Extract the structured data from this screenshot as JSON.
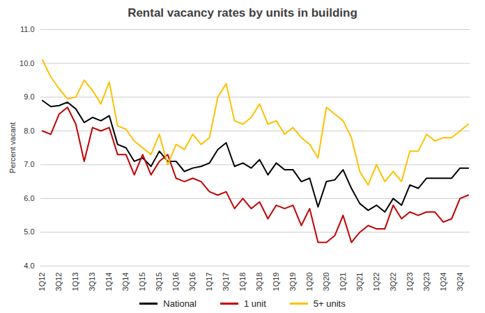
{
  "chart_data": {
    "type": "line",
    "title": "Rental vacancy rates by units in building",
    "y_label": "Percent vacant",
    "categories": [
      "1Q12",
      null,
      "3Q12",
      null,
      "1Q13",
      null,
      "3Q13",
      null,
      "1Q14",
      null,
      "3Q14",
      null,
      "1Q15",
      null,
      "3Q15",
      null,
      "1Q16",
      null,
      "3Q16",
      null,
      "1Q17",
      null,
      "3Q17",
      null,
      "1Q18",
      null,
      "3Q18",
      null,
      "1Q19",
      null,
      "3Q19",
      null,
      "1Q20",
      null,
      "3Q20",
      null,
      "1Q21",
      null,
      "3Q21",
      null,
      "1Q22",
      null,
      "3Q22",
      null,
      "1Q23",
      null,
      "3Q23",
      null,
      "1Q24",
      null,
      "3Q24",
      null
    ],
    "series": [
      {
        "name": "National",
        "color": "#000000",
        "values": [
          8.9,
          8.72,
          8.75,
          8.85,
          8.65,
          8.25,
          8.4,
          8.3,
          8.45,
          7.6,
          7.5,
          7.1,
          7.2,
          6.95,
          7.4,
          7.1,
          7.1,
          6.8,
          6.9,
          6.95,
          7.05,
          7.45,
          7.65,
          6.95,
          7.05,
          6.9,
          7.15,
          6.7,
          7.05,
          6.85,
          6.85,
          6.5,
          6.6,
          5.75,
          6.5,
          6.55,
          6.85,
          6.3,
          5.85,
          5.65,
          5.8,
          5.6,
          6.0,
          5.8,
          6.4,
          6.3,
          6.6,
          6.6,
          6.6,
          6.6,
          6.9,
          6.9
        ]
      },
      {
        "name": "1 unit",
        "color": "#c00000",
        "values": [
          8.0,
          7.9,
          8.5,
          8.7,
          8.2,
          7.1,
          8.1,
          8.0,
          8.1,
          7.3,
          7.3,
          6.7,
          7.3,
          6.7,
          7.1,
          7.3,
          6.6,
          6.5,
          6.6,
          6.5,
          6.2,
          6.1,
          6.2,
          5.7,
          6.0,
          5.7,
          5.9,
          5.4,
          5.8,
          5.7,
          5.8,
          5.2,
          5.7,
          4.7,
          4.7,
          4.9,
          5.5,
          4.7,
          5.0,
          5.2,
          5.1,
          5.1,
          5.8,
          5.4,
          5.6,
          5.5,
          5.6,
          5.6,
          5.3,
          5.4,
          6.0,
          6.1
        ]
      },
      {
        "name": "5+ units",
        "color": "#ffc000",
        "values": [
          10.1,
          9.6,
          9.25,
          8.95,
          9.0,
          9.5,
          9.2,
          8.8,
          9.45,
          8.15,
          8.05,
          7.7,
          7.5,
          7.3,
          7.9,
          7.0,
          7.6,
          7.45,
          7.9,
          7.6,
          7.8,
          9.0,
          9.4,
          8.3,
          8.2,
          8.4,
          8.8,
          8.2,
          8.3,
          7.9,
          8.1,
          7.8,
          7.6,
          7.2,
          8.7,
          8.5,
          8.3,
          7.8,
          6.8,
          6.4,
          7.0,
          6.5,
          6.8,
          6.5,
          7.4,
          7.4,
          7.9,
          7.7,
          7.8,
          7.8,
          8.0,
          8.2
        ]
      }
    ],
    "ylim": [
      4,
      11
    ],
    "yticks": [
      4,
      5,
      6,
      7,
      8,
      9,
      10,
      11
    ],
    "grid": true,
    "legend": "bottom"
  }
}
